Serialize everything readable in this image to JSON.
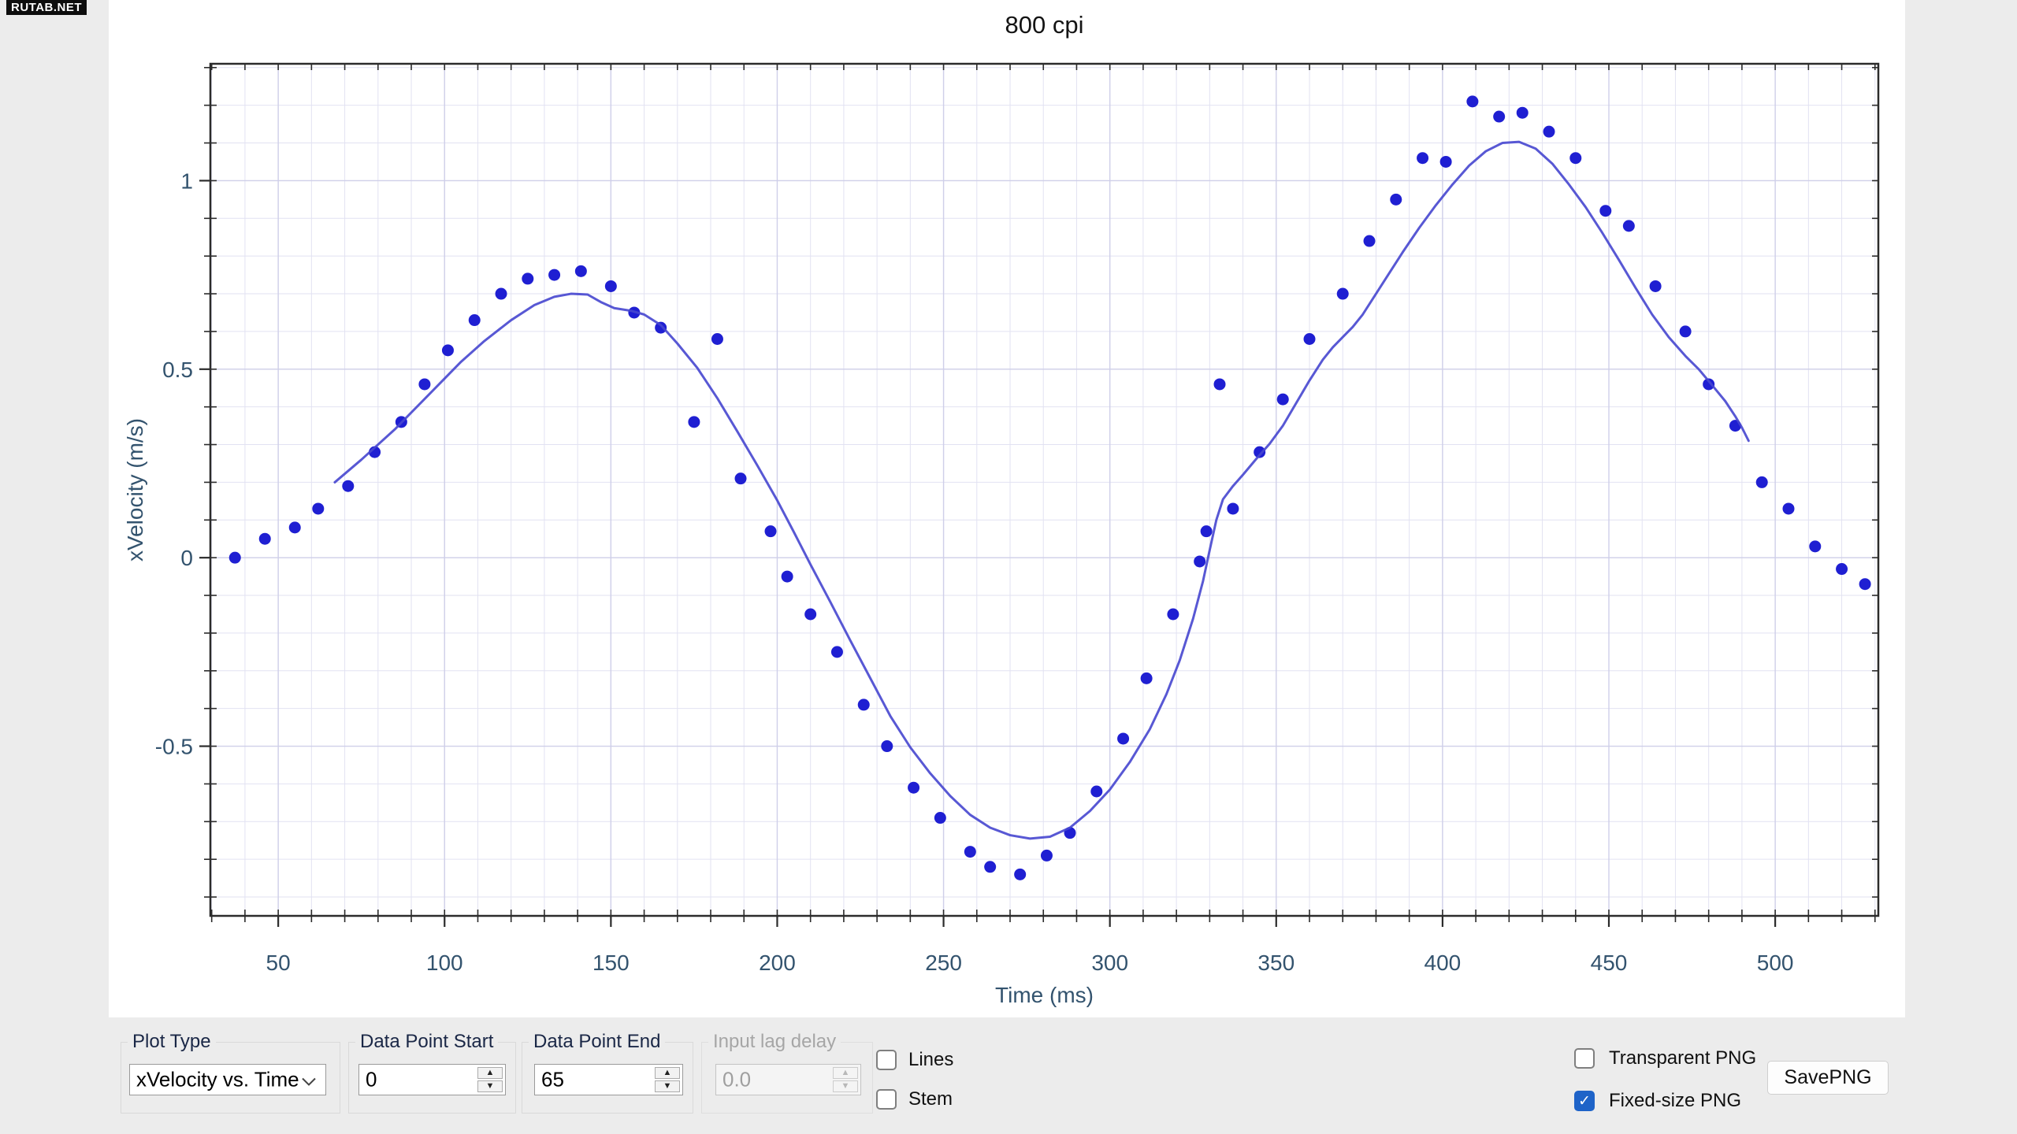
{
  "badge": {
    "text": "RUTAB.NET"
  },
  "chart": {
    "title": "800 cpi",
    "xlabel": "Time (ms)",
    "ylabel": "xVelocity (m/s)"
  },
  "chart_data": {
    "type": "scatter",
    "title": "800 cpi",
    "xlabel": "Time (ms)",
    "ylabel": "xVelocity (m/s)",
    "xlim": [
      29.6,
      531
    ],
    "ylim": [
      -0.95,
      1.31
    ],
    "x_major_step": 50,
    "x_minor_step": 10,
    "y_major_step": 0.5,
    "y_minor_step": 0.1,
    "grid": true,
    "legend": "none",
    "series": [
      {
        "name": "xVelocity data points",
        "type": "scatter",
        "points": [
          [
            37,
            0.0
          ],
          [
            46,
            0.05
          ],
          [
            55,
            0.08
          ],
          [
            62,
            0.13
          ],
          [
            71,
            0.19
          ],
          [
            79,
            0.28
          ],
          [
            87,
            0.36
          ],
          [
            94,
            0.46
          ],
          [
            101,
            0.55
          ],
          [
            109,
            0.63
          ],
          [
            117,
            0.7
          ],
          [
            125,
            0.74
          ],
          [
            133,
            0.75
          ],
          [
            141,
            0.76
          ],
          [
            150,
            0.72
          ],
          [
            157,
            0.65
          ],
          [
            165,
            0.61
          ],
          [
            175,
            0.36
          ],
          [
            182,
            0.58
          ],
          [
            189,
            0.21
          ],
          [
            198,
            0.07
          ],
          [
            203,
            -0.05
          ],
          [
            210,
            -0.15
          ],
          [
            218,
            -0.25
          ],
          [
            226,
            -0.39
          ],
          [
            233,
            -0.5
          ],
          [
            241,
            -0.61
          ],
          [
            249,
            -0.69
          ],
          [
            258,
            -0.78
          ],
          [
            264,
            -0.82
          ],
          [
            273,
            -0.84
          ],
          [
            281,
            -0.79
          ],
          [
            288,
            -0.73
          ],
          [
            296,
            -0.62
          ],
          [
            304,
            -0.48
          ],
          [
            311,
            -0.32
          ],
          [
            319,
            -0.15
          ],
          [
            327,
            -0.01
          ],
          [
            329,
            0.07
          ],
          [
            333,
            0.46
          ],
          [
            337,
            0.13
          ],
          [
            345,
            0.28
          ],
          [
            352,
            0.42
          ],
          [
            360,
            0.58
          ],
          [
            370,
            0.7
          ],
          [
            378,
            0.84
          ],
          [
            386,
            0.95
          ],
          [
            394,
            1.06
          ],
          [
            401,
            1.05
          ],
          [
            409,
            1.21
          ],
          [
            417,
            1.17
          ],
          [
            424,
            1.18
          ],
          [
            432,
            1.13
          ],
          [
            440,
            1.06
          ],
          [
            449,
            0.92
          ],
          [
            456,
            0.88
          ],
          [
            464,
            0.72
          ],
          [
            473,
            0.6
          ],
          [
            480,
            0.46
          ],
          [
            488,
            0.35
          ],
          [
            496,
            0.2
          ],
          [
            504,
            0.13
          ],
          [
            512,
            0.03
          ],
          [
            520,
            -0.03
          ],
          [
            527,
            -0.07
          ]
        ]
      },
      {
        "name": "smoothed fit line",
        "type": "line",
        "points": [
          [
            67,
            0.2
          ],
          [
            75,
            0.26
          ],
          [
            85,
            0.34
          ],
          [
            95,
            0.43
          ],
          [
            105,
            0.52
          ],
          [
            112,
            0.575
          ],
          [
            120,
            0.63
          ],
          [
            127,
            0.67
          ],
          [
            133,
            0.692
          ],
          [
            138,
            0.7
          ],
          [
            143,
            0.698
          ],
          [
            147,
            0.678
          ],
          [
            151,
            0.662
          ],
          [
            156,
            0.655
          ],
          [
            160,
            0.645
          ],
          [
            165,
            0.617
          ],
          [
            170,
            0.568
          ],
          [
            176,
            0.503
          ],
          [
            182,
            0.423
          ],
          [
            188,
            0.335
          ],
          [
            194,
            0.245
          ],
          [
            200,
            0.152
          ],
          [
            205,
            0.068
          ],
          [
            210,
            -0.018
          ],
          [
            216,
            -0.118
          ],
          [
            222,
            -0.22
          ],
          [
            228,
            -0.32
          ],
          [
            234,
            -0.42
          ],
          [
            240,
            -0.503
          ],
          [
            246,
            -0.572
          ],
          [
            252,
            -0.632
          ],
          [
            258,
            -0.682
          ],
          [
            264,
            -0.716
          ],
          [
            270,
            -0.736
          ],
          [
            276,
            -0.745
          ],
          [
            282,
            -0.74
          ],
          [
            288,
            -0.716
          ],
          [
            294,
            -0.672
          ],
          [
            300,
            -0.615
          ],
          [
            306,
            -0.542
          ],
          [
            312,
            -0.455
          ],
          [
            317,
            -0.362
          ],
          [
            321,
            -0.272
          ],
          [
            325,
            -0.162
          ],
          [
            328,
            -0.062
          ],
          [
            330,
            0.02
          ],
          [
            332,
            0.1
          ],
          [
            334,
            0.155
          ],
          [
            337,
            0.19
          ],
          [
            340,
            0.22
          ],
          [
            344,
            0.262
          ],
          [
            348,
            0.302
          ],
          [
            352,
            0.35
          ],
          [
            356,
            0.41
          ],
          [
            360,
            0.47
          ],
          [
            364,
            0.525
          ],
          [
            367,
            0.558
          ],
          [
            370,
            0.585
          ],
          [
            373,
            0.612
          ],
          [
            376,
            0.645
          ],
          [
            380,
            0.7
          ],
          [
            384,
            0.755
          ],
          [
            388,
            0.81
          ],
          [
            393,
            0.875
          ],
          [
            398,
            0.935
          ],
          [
            403,
            0.99
          ],
          [
            408,
            1.04
          ],
          [
            413,
            1.078
          ],
          [
            418,
            1.1
          ],
          [
            423,
            1.103
          ],
          [
            428,
            1.085
          ],
          [
            433,
            1.045
          ],
          [
            438,
            0.99
          ],
          [
            443,
            0.93
          ],
          [
            448,
            0.862
          ],
          [
            453,
            0.79
          ],
          [
            458,
            0.716
          ],
          [
            463,
            0.645
          ],
          [
            468,
            0.585
          ],
          [
            473,
            0.535
          ],
          [
            477,
            0.5
          ],
          [
            481,
            0.458
          ],
          [
            485,
            0.415
          ],
          [
            488,
            0.375
          ],
          [
            490,
            0.345
          ],
          [
            492,
            0.31
          ]
        ]
      }
    ]
  },
  "controls": {
    "plot_type": {
      "label": "Plot Type",
      "value": "xVelocity vs. Time"
    },
    "data_point_start": {
      "label": "Data Point Start",
      "value": "0"
    },
    "data_point_end": {
      "label": "Data Point End",
      "value": "65"
    },
    "input_lag_delay": {
      "label": "Input lag delay",
      "value": "0.0",
      "disabled": true
    },
    "checkboxes": {
      "lines": {
        "label": "Lines",
        "checked": false
      },
      "stem": {
        "label": "Stem",
        "checked": false
      },
      "transparent_png": {
        "label": "Transparent PNG",
        "checked": false
      },
      "fixed_size_png": {
        "label": "Fixed-size PNG",
        "checked": true
      }
    },
    "save_button": {
      "label": "SavePNG"
    }
  },
  "colors": {
    "background": "#ececec",
    "panel": "#ffffff",
    "dot": "#1f1fd2",
    "fit_line": "#4646cf",
    "grid_minor": "#e2e2f2",
    "grid_major": "#cfcfe9",
    "spine": "#2b2b2b",
    "tick_label": "#33536e",
    "accent_checkbox": "#1e63c8"
  }
}
